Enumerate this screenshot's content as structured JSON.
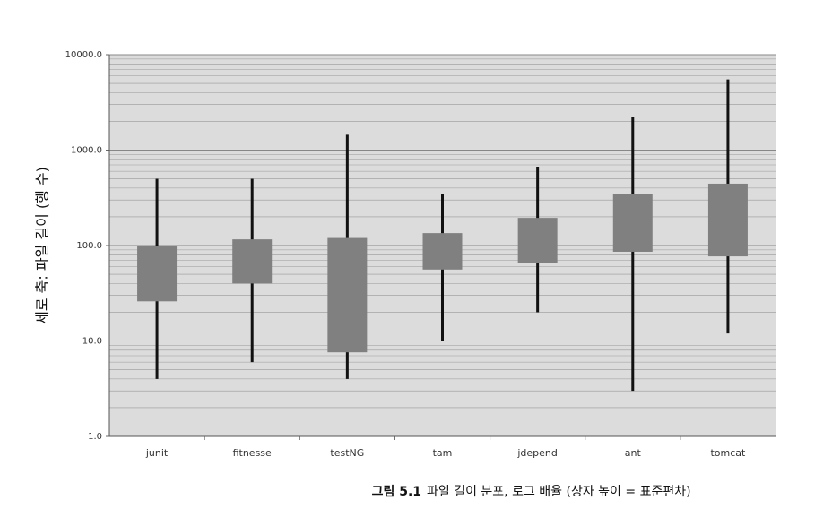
{
  "chart_data": {
    "type": "box",
    "y_label": "세로 축: 파일 길이 (행 수)",
    "caption": {
      "label": "그림 5.1",
      "text": "파일 길이 분포, 로그 배율 (상자 높이 = 표준편차)"
    },
    "categories": [
      "junit",
      "fitnesse",
      "testNG",
      "tam",
      "jdepend",
      "ant",
      "tomcat"
    ],
    "low": [
      4,
      6,
      4,
      10,
      20,
      3,
      12
    ],
    "high": [
      500,
      500,
      1450,
      350,
      670,
      2200,
      5500
    ],
    "box_low": [
      26,
      40,
      7.6,
      56,
      65,
      86,
      77
    ],
    "box_high": [
      100,
      116,
      120,
      135,
      195,
      350,
      445
    ],
    "box_color": "#808080",
    "whisker_color": "#111111",
    "log_y": true,
    "grid": true,
    "minor_grid": true,
    "ylim": [
      1,
      10000
    ],
    "yticks": [
      {
        "value": 1,
        "label": "1.0"
      },
      {
        "value": 10,
        "label": "10.0"
      },
      {
        "value": 100,
        "label": "100.0"
      },
      {
        "value": 1000,
        "label": "1000.0"
      },
      {
        "value": 10000,
        "label": "10000.0"
      }
    ]
  }
}
